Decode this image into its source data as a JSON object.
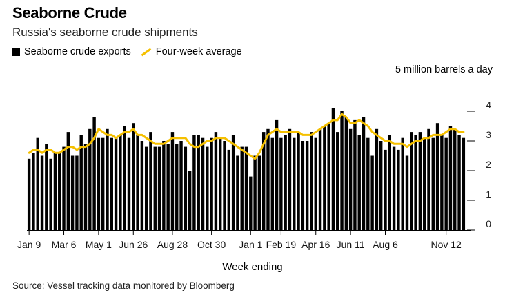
{
  "title": "Seaborne Crude",
  "subtitle": "Russia's seaborne crude shipments",
  "legend": {
    "bars": "Seaborne crude exports",
    "line": "Four-week average"
  },
  "unit_label": "5 million barrels a day",
  "x_axis_title": "Week ending",
  "source": "Source: Vessel tracking data monitored by Bloomberg",
  "colors": {
    "bars": "#000000",
    "line": "#f5c000",
    "axis": "#000000"
  },
  "chart_data": {
    "type": "bar",
    "ylim": [
      0,
      5
    ],
    "y_ticks": [
      0,
      1,
      2,
      3,
      4
    ],
    "x_tick_labels": [
      {
        "label": "Jan 9",
        "index": 0
      },
      {
        "label": "Mar 6",
        "index": 8
      },
      {
        "label": "May 1",
        "index": 16
      },
      {
        "label": "Jun 26",
        "index": 24
      },
      {
        "label": "Aug 28",
        "index": 33
      },
      {
        "label": "Oct 30",
        "index": 42
      },
      {
        "label": "Jan 1",
        "index": 51
      },
      {
        "label": "Feb 19",
        "index": 58
      },
      {
        "label": "Apr 16",
        "index": 66
      },
      {
        "label": "Jun 11",
        "index": 74
      },
      {
        "label": "Aug 6",
        "index": 82
      },
      {
        "label": "Nov 12",
        "index": 96
      }
    ],
    "series": [
      {
        "name": "Seaborne crude exports",
        "type": "bar",
        "values": [
          2.4,
          2.6,
          3.1,
          2.5,
          2.9,
          2.4,
          2.6,
          2.6,
          2.8,
          3.3,
          2.5,
          2.5,
          3.2,
          2.9,
          3.4,
          3.8,
          3.1,
          3.1,
          3.4,
          3.1,
          3.1,
          3.2,
          3.5,
          3.1,
          3.6,
          3.2,
          3.0,
          2.8,
          3.3,
          2.8,
          2.8,
          3.0,
          2.9,
          3.3,
          2.9,
          3.0,
          2.8,
          2.0,
          3.2,
          3.2,
          3.1,
          2.8,
          3.1,
          3.3,
          3.1,
          3.0,
          2.7,
          3.2,
          2.5,
          2.8,
          2.8,
          1.8,
          2.5,
          2.5,
          3.3,
          3.4,
          3.1,
          3.7,
          3.1,
          3.2,
          3.4,
          3.1,
          3.3,
          3.0,
          3.0,
          3.3,
          3.1,
          3.4,
          3.5,
          3.6,
          4.1,
          3.3,
          4.0,
          3.8,
          3.4,
          3.7,
          3.2,
          3.8,
          3.1,
          2.5,
          3.4,
          3.0,
          2.7,
          3.2,
          2.8,
          2.7,
          3.1,
          2.5,
          3.3,
          3.2,
          3.3,
          3.1,
          3.4,
          3.1,
          3.6,
          3.2,
          3.1,
          3.5,
          3.4,
          3.2,
          3.1
        ]
      },
      {
        "name": "Four-week average",
        "type": "line",
        "values": [
          2.6,
          2.7,
          2.7,
          2.6,
          2.7,
          2.7,
          2.6,
          2.6,
          2.7,
          2.8,
          2.8,
          2.7,
          2.8,
          2.8,
          2.9,
          3.1,
          3.4,
          3.3,
          3.2,
          3.2,
          3.1,
          3.2,
          3.3,
          3.3,
          3.4,
          3.2,
          3.2,
          3.1,
          3.0,
          2.9,
          2.9,
          2.9,
          3.0,
          3.1,
          3.1,
          3.1,
          3.1,
          2.9,
          2.8,
          2.8,
          2.9,
          3.0,
          3.0,
          3.1,
          3.1,
          3.1,
          3.0,
          2.9,
          2.8,
          2.7,
          2.6,
          2.5,
          2.4,
          2.6,
          2.9,
          3.2,
          3.3,
          3.4,
          3.3,
          3.3,
          3.3,
          3.3,
          3.3,
          3.2,
          3.2,
          3.2,
          3.3,
          3.4,
          3.5,
          3.6,
          3.7,
          3.7,
          3.9,
          3.8,
          3.6,
          3.6,
          3.7,
          3.6,
          3.5,
          3.3,
          3.2,
          3.1,
          3.0,
          3.0,
          2.9,
          2.9,
          2.9,
          2.8,
          2.9,
          3.0,
          3.0,
          3.1,
          3.1,
          3.2,
          3.2,
          3.2,
          3.3,
          3.4,
          3.4,
          3.3,
          3.3
        ]
      }
    ]
  }
}
